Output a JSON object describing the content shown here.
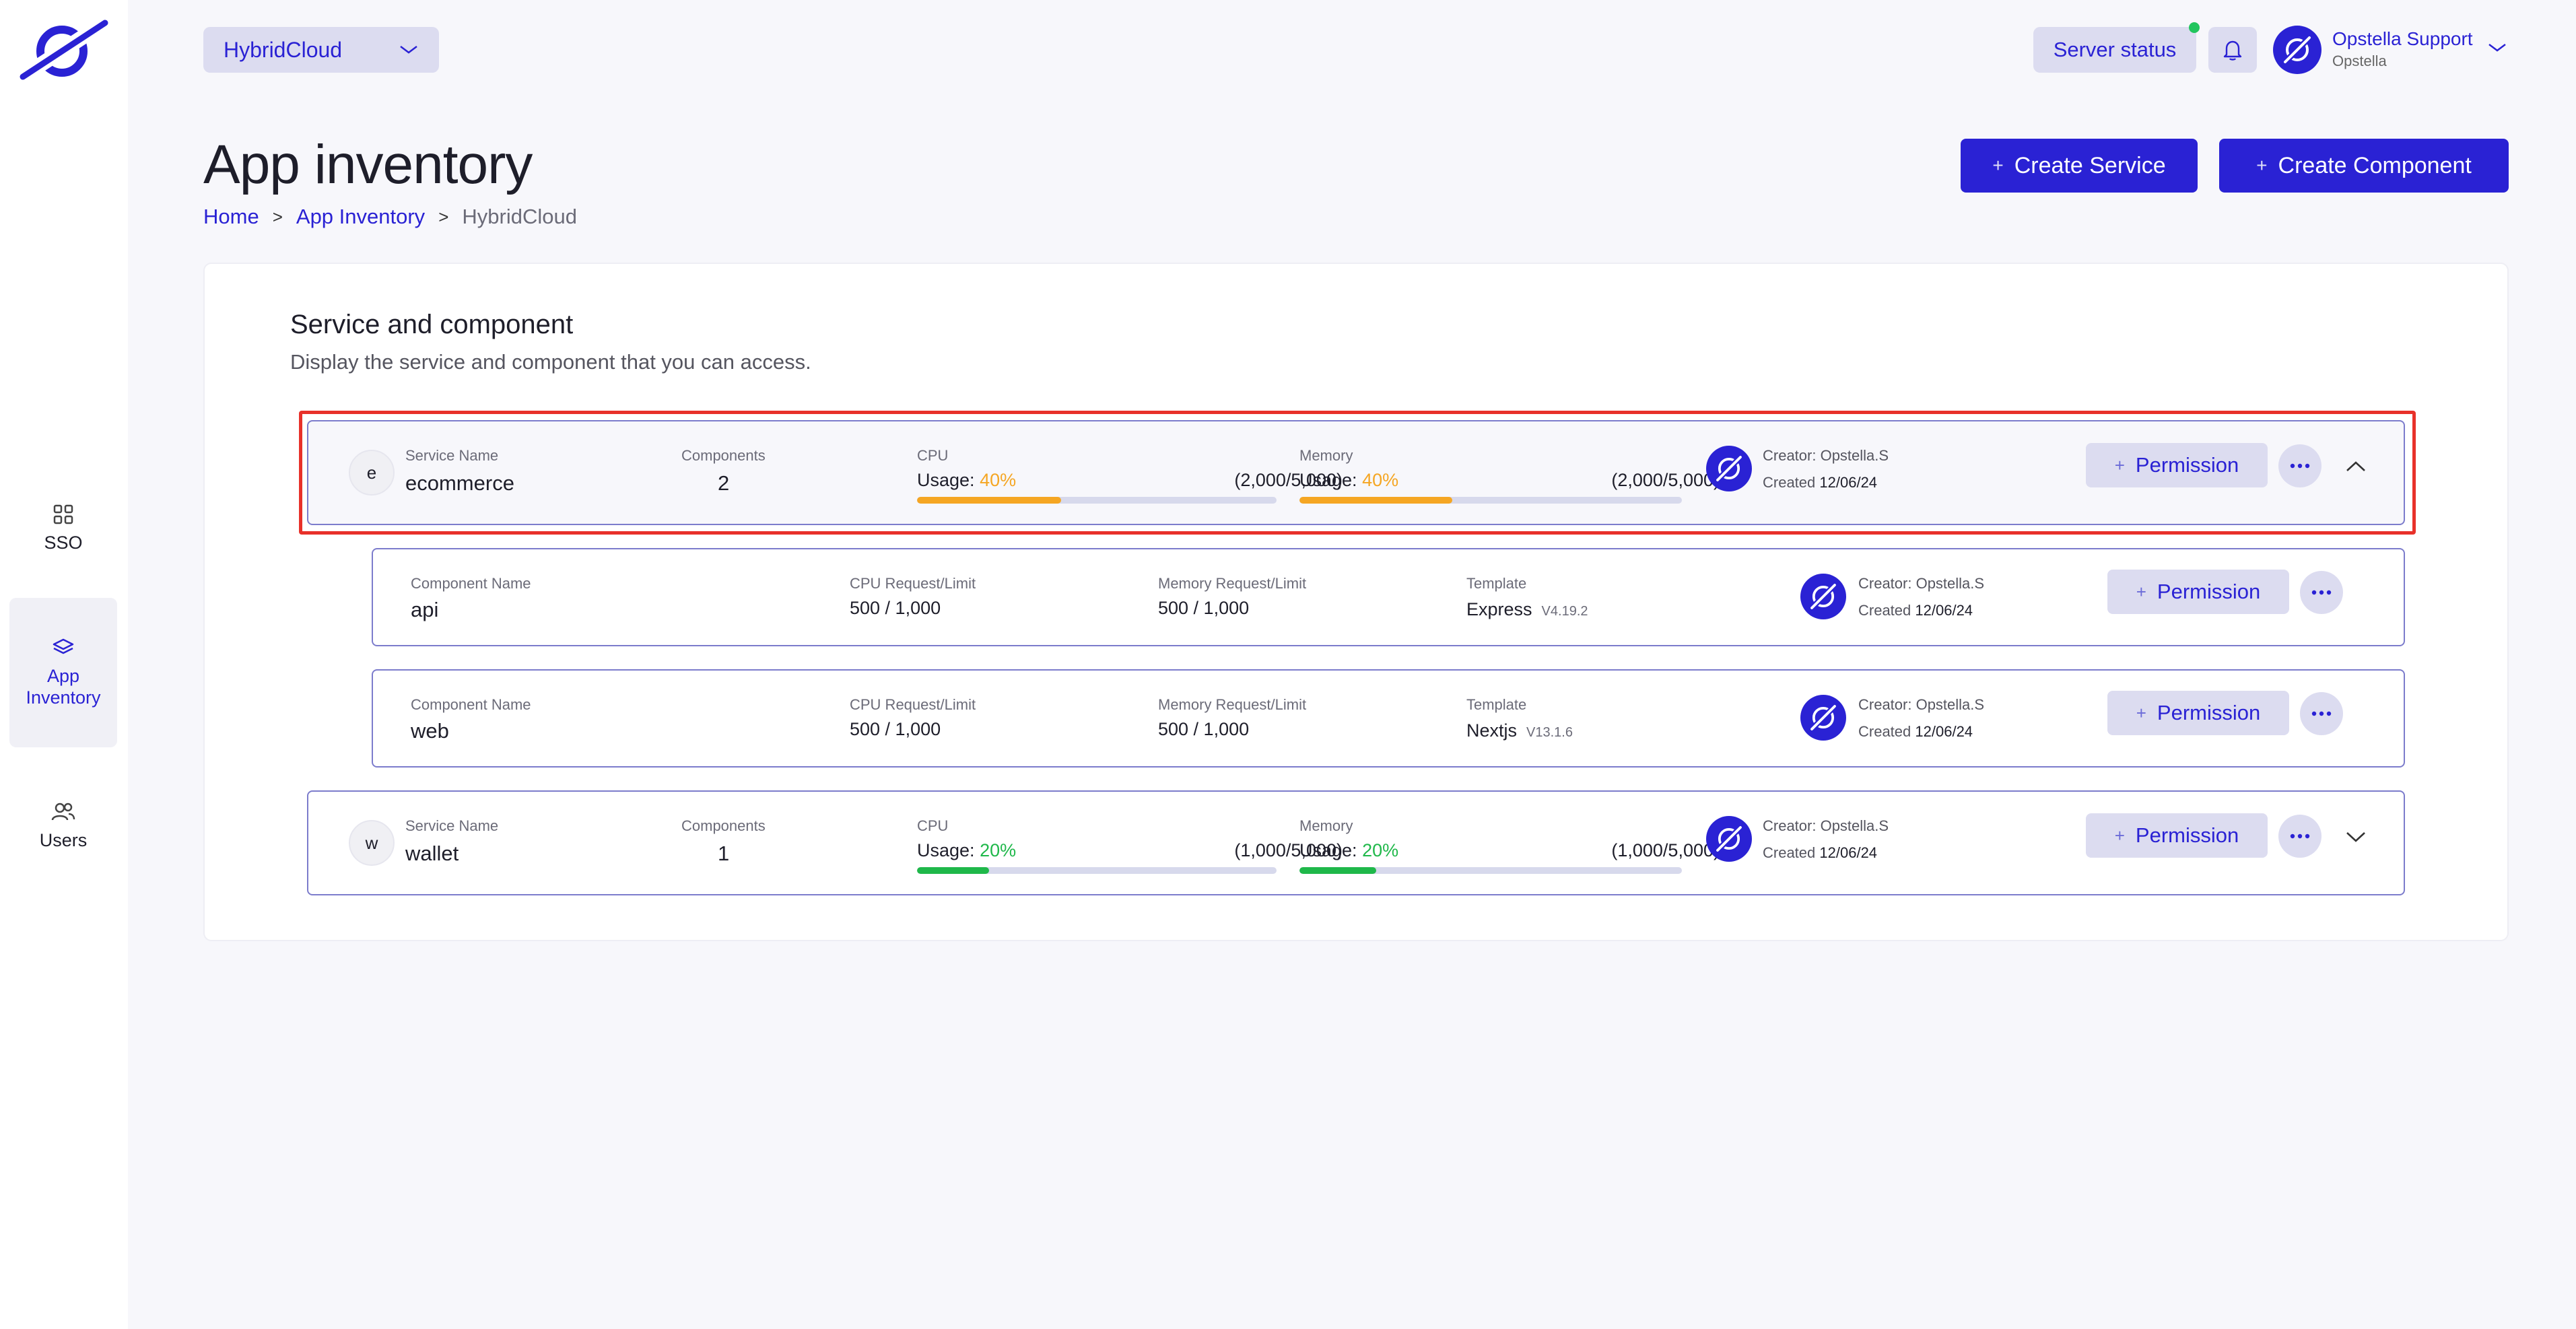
{
  "workspace_select": {
    "value": "HybridCloud"
  },
  "header": {
    "server_status": "Server status",
    "user": {
      "name": "Opstella Support",
      "org": "Opstella"
    }
  },
  "sidebar": {
    "items": [
      {
        "label": "SSO",
        "icon": "grid-icon",
        "active": false
      },
      {
        "label": "App Inventory",
        "icon": "layers-icon",
        "active": true
      },
      {
        "label": "Users",
        "icon": "users-icon",
        "active": false
      }
    ]
  },
  "page": {
    "title": "App inventory",
    "breadcrumb": [
      "Home",
      "App Inventory",
      "HybridCloud"
    ],
    "create_service": "Create Service",
    "create_component": "Create Component"
  },
  "card": {
    "title": "Service and component",
    "subtitle": "Display the service and component that you can access."
  },
  "labels": {
    "service_name": "Service Name",
    "components": "Components",
    "cpu": "CPU",
    "memory": "Memory",
    "usage": "Usage:",
    "component_name": "Component Name",
    "cpu_req_limit": "CPU Request/Limit",
    "mem_req_limit": "Memory Request/Limit",
    "template": "Template",
    "created": "Created",
    "permission": "Permission"
  },
  "services": [
    {
      "initial": "e",
      "name": "ecommerce",
      "components": "2",
      "cpu_pct": "40%",
      "cpu_usage": 0.4,
      "cpu_ratio": "(2,000/5,000)",
      "mem_pct": "40%",
      "mem_usage": 0.4,
      "mem_ratio": "(2,000/5,000)",
      "creator": "Creator: Opstella.S",
      "created": "12/06/24",
      "expanded": true,
      "color": "#f5a623"
    },
    {
      "initial": "w",
      "name": "wallet",
      "components": "1",
      "cpu_pct": "20%",
      "cpu_usage": 0.2,
      "cpu_ratio": "(1,000/5,000)",
      "mem_pct": "20%",
      "mem_usage": 0.2,
      "mem_ratio": "(1,000/5,000)",
      "creator": "Creator: Opstella.S",
      "created": "12/06/24",
      "expanded": false,
      "color": "#1fb84a"
    }
  ],
  "components": [
    {
      "name": "api",
      "cpu": "500 / 1,000",
      "mem": "500 / 1,000",
      "template": "Express",
      "template_version": "V4.19.2",
      "creator": "Creator: Opstella.S",
      "created": "12/06/24"
    },
    {
      "name": "web",
      "cpu": "500 / 1,000",
      "mem": "500 / 1,000",
      "template": "Nextjs",
      "template_version": "V13.1.6",
      "creator": "Creator: Opstella.S",
      "created": "12/06/24"
    }
  ],
  "colors": {
    "accent": "#2a22d4",
    "highlight": "#e8312a",
    "usage_warn": "#f5a623",
    "usage_ok": "#1fb84a"
  }
}
